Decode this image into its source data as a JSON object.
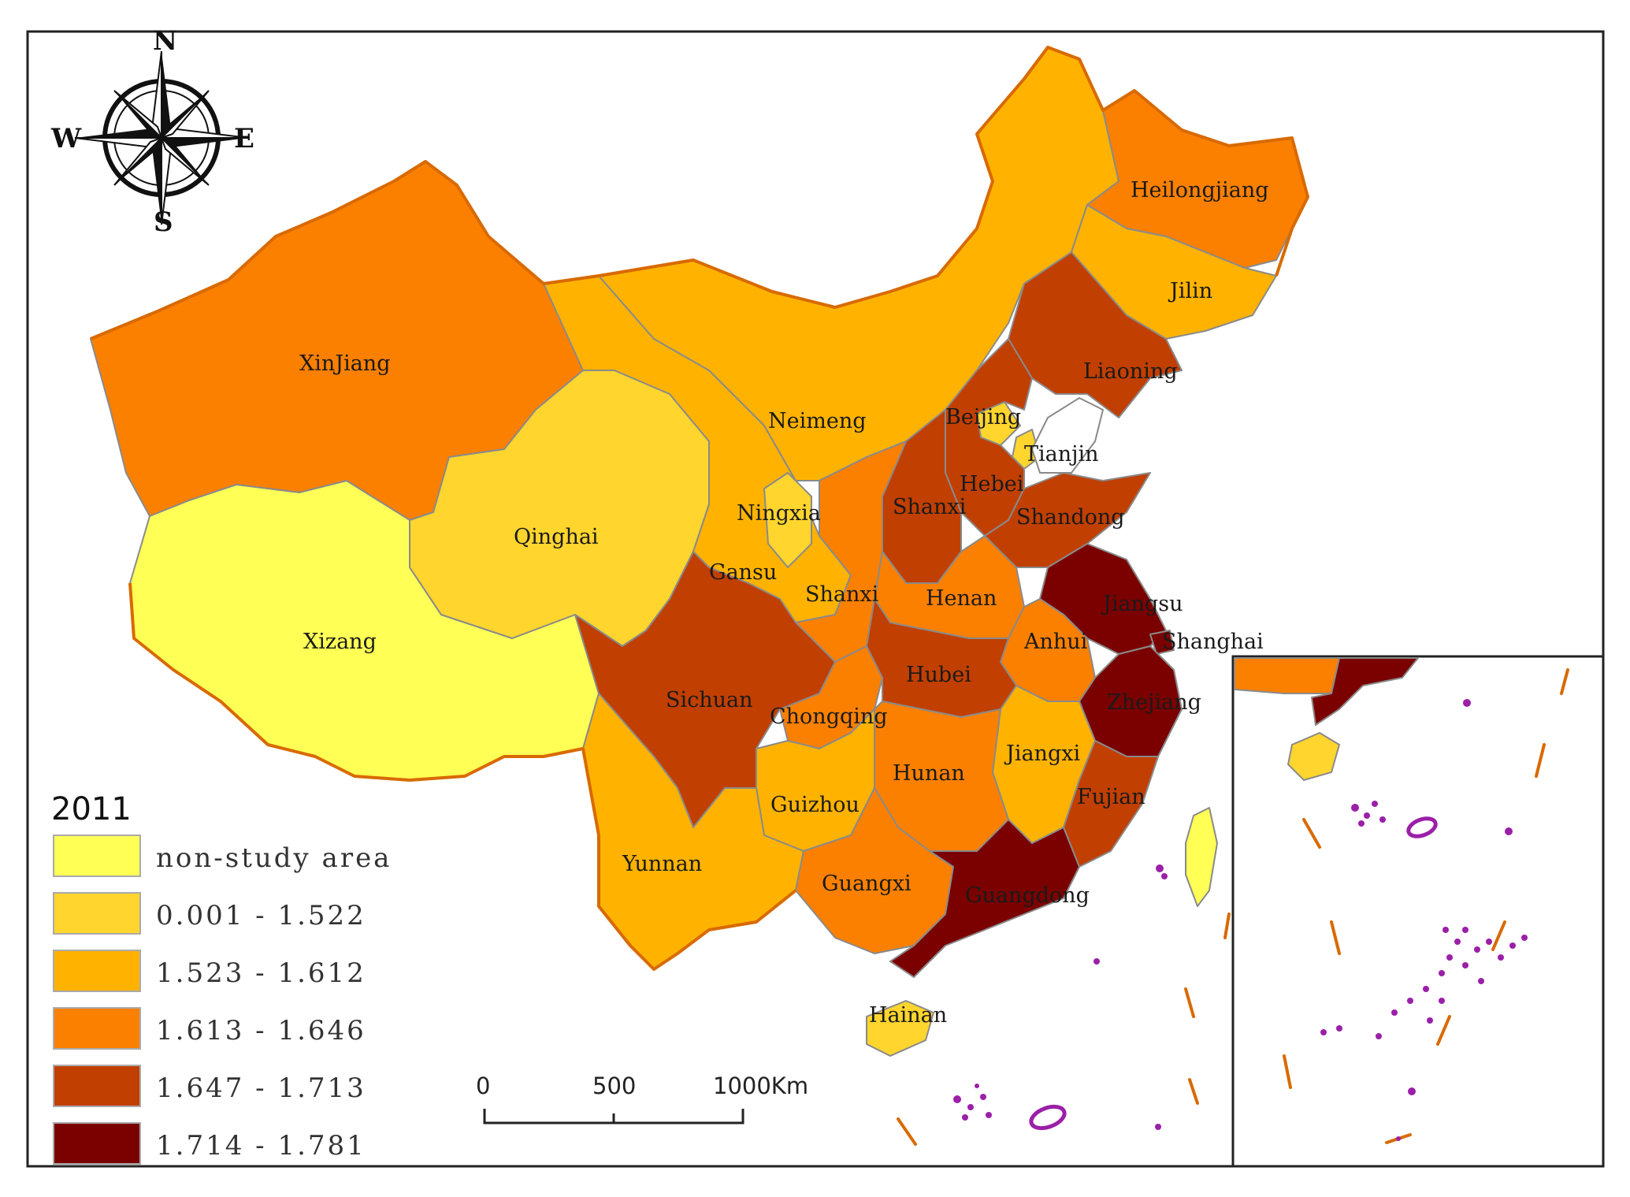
{
  "legend": {
    "title": "2011",
    "items": [
      {
        "label": "non-study area",
        "color": "#ffff55"
      },
      {
        "label": "0.001 - 1.522",
        "color": "#ffd52e"
      },
      {
        "label": "1.523 - 1.612",
        "color": "#ffb300"
      },
      {
        "label": "1.613 - 1.646",
        "color": "#fb8000"
      },
      {
        "label": "1.647 - 1.713",
        "color": "#c13f00"
      },
      {
        "label": "1.714 - 1.781",
        "color": "#7b0000"
      }
    ]
  },
  "scale_bar": {
    "ticks": [
      "0",
      "500",
      "1000Km"
    ]
  },
  "compass": {
    "n": "N",
    "s": "S",
    "e": "E",
    "w": "W"
  },
  "provinces": {
    "xinjiang": "XinJiang",
    "xizang": "Xizang",
    "qinghai": "Qinghai",
    "gansu": "Gansu",
    "neimeng": "Neimeng",
    "ningxia": "Ningxia",
    "heilongjiang": "Heilongjiang",
    "jilin": "Jilin",
    "liaoning": "Liaoning",
    "beijing": "Beijing",
    "tianjin": "Tianjin",
    "hebei": "Hebei",
    "shanxi_n": "Shanxi",
    "shandong": "Shandong",
    "shanxi_s": "Shanxi",
    "henan": "Henan",
    "jiangsu": "Jiangsu",
    "shanghai": "Shanghai",
    "anhui": "Anhui",
    "sichuan": "Sichuan",
    "chongqing": "Chongqing",
    "hubei": "Hubei",
    "zhejiang": "Zhejiang",
    "jiangxi": "Jiangxi",
    "hunan": "Hunan",
    "guizhou": "Guizhou",
    "fujian": "Fujian",
    "yunnan": "Yunnan",
    "guangxi": "Guangxi",
    "guangdong": "Guangdong",
    "hainan": "Hainan"
  }
}
